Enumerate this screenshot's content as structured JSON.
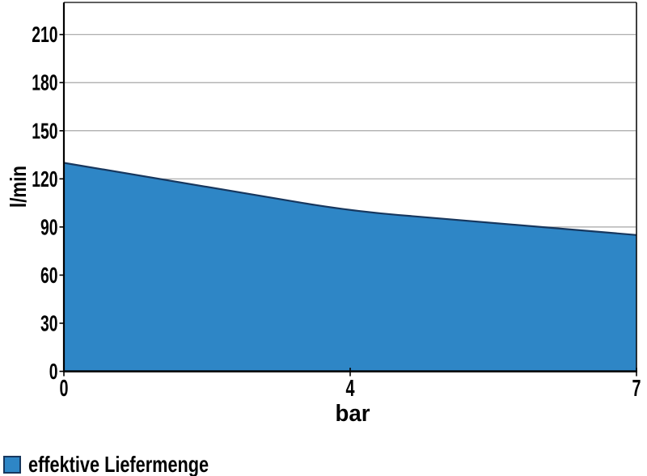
{
  "chart_data": {
    "type": "area",
    "title": "",
    "categories": [
      "0",
      "4",
      "7"
    ],
    "x_values": [
      0,
      4,
      7
    ],
    "series": [
      {
        "name": "effektive Liefermenge",
        "values": [
          130,
          100,
          85
        ]
      }
    ],
    "xlabel": "bar",
    "ylabel": "l/min",
    "ylim": [
      0,
      230
    ],
    "yticks": [
      0,
      30,
      60,
      90,
      120,
      150,
      180,
      210
    ],
    "grid": "horizontal-only",
    "smooth_line": true,
    "legend_position": "bottom-left",
    "colors": {
      "area_fill": "#2E86C6",
      "area_outline": "#17375E",
      "gridline": "#A6A6A6",
      "axis": "#000000",
      "text": "#000000",
      "background": "#FFFFFF"
    }
  }
}
